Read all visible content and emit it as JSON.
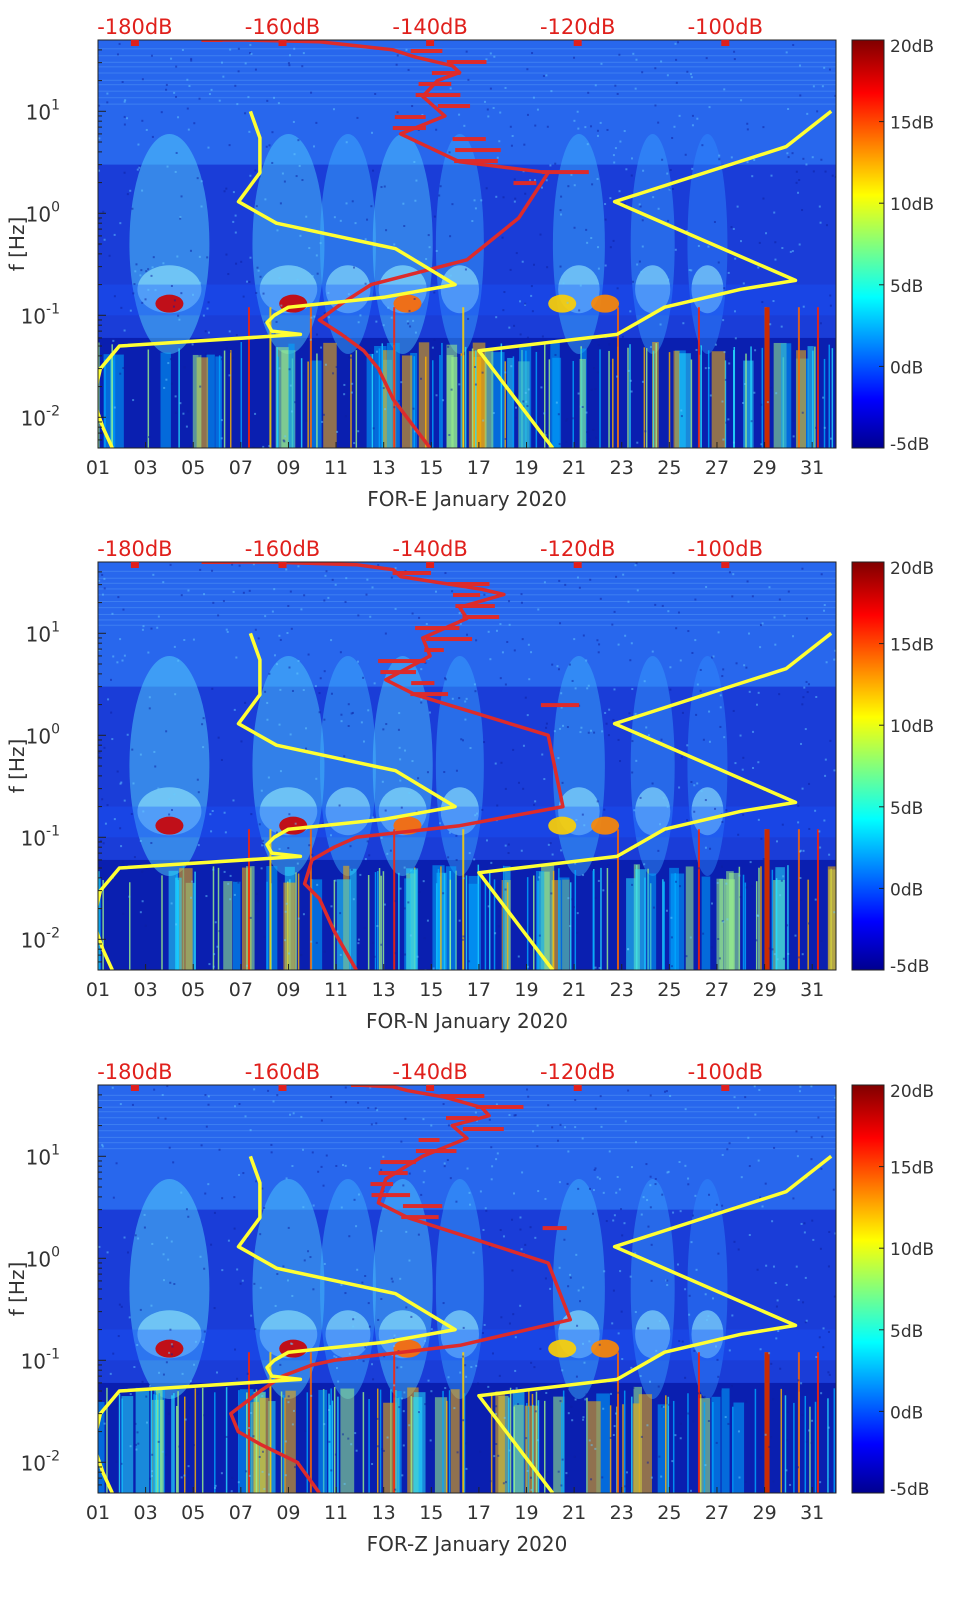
{
  "chart_data": [
    {
      "type": "heatmap",
      "title": "",
      "xlabel": "FOR-E January 2020",
      "ylabel": "f [Hz]",
      "x_ticks": [
        "01",
        "03",
        "05",
        "07",
        "09",
        "11",
        "13",
        "15",
        "17",
        "19",
        "21",
        "23",
        "25",
        "27",
        "29",
        "31"
      ],
      "y_ticks": [
        "10^-2",
        "10^-1",
        "10^0",
        "10^1"
      ],
      "top_axis_ticks": [
        "-180dB",
        "-160dB",
        "-140dB",
        "-120dB",
        "-100dB"
      ],
      "colorbar": {
        "ticks": [
          "20dB",
          "15dB",
          "10dB",
          "5dB",
          "0dB",
          "-5dB"
        ],
        "range_db": [
          -5,
          20
        ]
      },
      "series": [
        {
          "name": "red-psd-curve",
          "x_db": [
            -170,
            -165,
            -155,
            -150,
            -145,
            -142,
            -137,
            -136,
            -139,
            -141,
            -138,
            -144,
            -136,
            -124,
            -128,
            -135,
            -148,
            -152,
            -155,
            -152,
            -149,
            -147,
            -145,
            -140
          ],
          "y_hz": [
            50,
            50,
            48,
            44,
            40,
            34,
            28,
            24,
            20,
            14,
            9,
            6,
            3.2,
            2.5,
            0.9,
            0.35,
            0.2,
            0.13,
            0.09,
            0.065,
            0.045,
            0.03,
            0.015,
            0.005
          ]
        },
        {
          "name": "yellow-left-curve",
          "x_day": [
            7.4,
            7.8,
            7.8,
            6.9,
            8.5,
            13.5,
            16.0,
            13.0,
            9.0,
            8.4,
            8.1,
            8.3,
            9.5,
            1.9,
            1.1,
            0.8,
            1.2,
            1.6
          ],
          "y_hz": [
            10,
            5.5,
            2.5,
            1.3,
            0.8,
            0.45,
            0.2,
            0.15,
            0.12,
            0.1,
            0.085,
            0.07,
            0.065,
            0.05,
            0.03,
            0.015,
            0.008,
            0.005
          ]
        },
        {
          "name": "yellow-right-curve",
          "x_day": [
            31.8,
            29.9,
            22.7,
            30.3,
            28.0,
            24.8,
            22.8,
            17.0,
            20.1
          ],
          "y_hz": [
            10,
            4.5,
            1.3,
            0.22,
            0.18,
            0.12,
            0.065,
            0.045,
            0.005
          ]
        }
      ]
    },
    {
      "type": "heatmap",
      "title": "",
      "xlabel": "FOR-N January 2020",
      "ylabel": "f [Hz]",
      "x_ticks": [
        "01",
        "03",
        "05",
        "07",
        "09",
        "11",
        "13",
        "15",
        "17",
        "19",
        "21",
        "23",
        "25",
        "27",
        "29",
        "31"
      ],
      "y_ticks": [
        "10^-2",
        "10^-1",
        "10^0",
        "10^1"
      ],
      "top_axis_ticks": [
        "-180dB",
        "-160dB",
        "-140dB",
        "-120dB",
        "-100dB"
      ],
      "colorbar": {
        "ticks": [
          "20dB",
          "15dB",
          "10dB",
          "5dB",
          "0dB",
          "-5dB"
        ],
        "range_db": [
          -5,
          20
        ]
      },
      "series": [
        {
          "name": "red-psd-curve",
          "x_db": [
            -170,
            -162,
            -150,
            -145,
            -144,
            -137,
            -133,
            -130,
            -136,
            -135,
            -141,
            -140,
            -146,
            -142,
            -124,
            -122,
            -136,
            -150,
            -153,
            -156,
            -157,
            -155,
            -153,
            -150
          ],
          "y_hz": [
            50,
            50,
            47,
            42,
            36,
            30,
            27,
            24,
            18,
            14,
            9,
            6,
            3.5,
            2.5,
            1.0,
            0.2,
            0.13,
            0.1,
            0.08,
            0.06,
            0.035,
            0.025,
            0.012,
            0.005
          ]
        },
        {
          "name": "yellow-left-curve",
          "x_day": [
            7.4,
            7.8,
            7.8,
            6.9,
            8.5,
            13.5,
            16.0,
            13.0,
            9.0,
            8.4,
            8.1,
            8.3,
            9.5,
            1.9,
            1.1,
            0.8,
            1.2,
            1.6
          ],
          "y_hz": [
            10,
            5.5,
            2.5,
            1.3,
            0.8,
            0.45,
            0.2,
            0.15,
            0.12,
            0.1,
            0.085,
            0.07,
            0.065,
            0.05,
            0.03,
            0.015,
            0.008,
            0.005
          ]
        },
        {
          "name": "yellow-right-curve",
          "x_day": [
            31.8,
            29.9,
            22.7,
            30.3,
            28.0,
            24.8,
            22.8,
            17.0,
            20.1
          ],
          "y_hz": [
            10,
            4.5,
            1.3,
            0.22,
            0.18,
            0.12,
            0.065,
            0.045,
            0.005
          ]
        }
      ]
    },
    {
      "type": "heatmap",
      "title": "",
      "xlabel": "FOR-Z January 2020",
      "ylabel": "f [Hz]",
      "x_ticks": [
        "01",
        "03",
        "05",
        "07",
        "09",
        "11",
        "13",
        "15",
        "17",
        "19",
        "21",
        "23",
        "25",
        "27",
        "29",
        "31"
      ],
      "y_ticks": [
        "10^-2",
        "10^-1",
        "10^0",
        "10^1"
      ],
      "top_axis_ticks": [
        "-180dB",
        "-160dB",
        "-140dB",
        "-120dB",
        "-100dB"
      ],
      "colorbar": {
        "ticks": [
          "20dB",
          "15dB",
          "10dB",
          "5dB",
          "0dB",
          "-5dB"
        ],
        "range_db": [
          -5,
          20
        ]
      },
      "series": [
        {
          "name": "red-psd-curve",
          "x_db": [
            -150,
            -145,
            -143,
            -138,
            -133,
            -132,
            -137,
            -135,
            -141,
            -146,
            -147,
            -143,
            -124,
            -121,
            -136,
            -153,
            -156,
            -160,
            -163,
            -167,
            -166,
            -163,
            -158,
            -155
          ],
          "y_hz": [
            50,
            48,
            44,
            38,
            30,
            25,
            20,
            15,
            10,
            6,
            3.5,
            2.5,
            0.9,
            0.25,
            0.14,
            0.1,
            0.09,
            0.07,
            0.05,
            0.03,
            0.02,
            0.015,
            0.01,
            0.005
          ]
        },
        {
          "name": "yellow-left-curve",
          "x_day": [
            7.4,
            7.8,
            7.8,
            6.9,
            8.5,
            13.5,
            16.0,
            13.0,
            9.0,
            8.4,
            8.1,
            8.3,
            9.5,
            1.9,
            1.1,
            0.8,
            1.2,
            1.6
          ],
          "y_hz": [
            10,
            5.5,
            2.5,
            1.3,
            0.8,
            0.45,
            0.2,
            0.15,
            0.12,
            0.1,
            0.085,
            0.07,
            0.065,
            0.05,
            0.03,
            0.015,
            0.008,
            0.005
          ]
        },
        {
          "name": "yellow-right-curve",
          "x_day": [
            31.8,
            29.9,
            22.7,
            30.3,
            28.0,
            24.8,
            22.8,
            17.0,
            20.1
          ],
          "y_hz": [
            10,
            4.5,
            1.3,
            0.22,
            0.18,
            0.12,
            0.065,
            0.045,
            0.005
          ]
        }
      ]
    }
  ],
  "colors": {
    "top_axis": "#e0201c",
    "red_curve": "#dd2b2b",
    "yellow_curve": "#ffff33",
    "text": "#333333"
  }
}
